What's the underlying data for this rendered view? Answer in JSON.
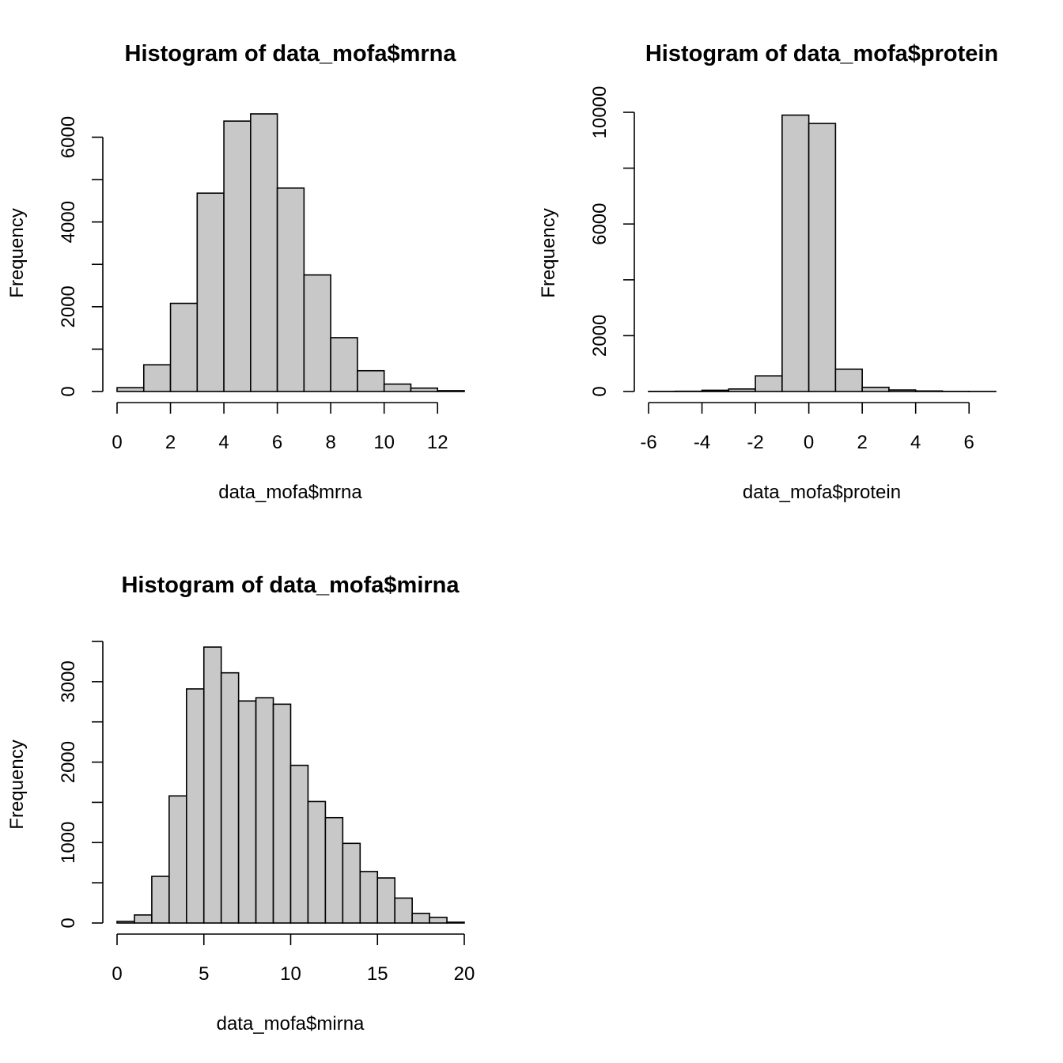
{
  "chart_data": [
    {
      "type": "bar",
      "chart_kind": "histogram",
      "title": "Histogram of data_mofa$mrna",
      "xlabel": "data_mofa$mrna",
      "ylabel": "Frequency",
      "bin_edges": [
        0,
        1,
        2,
        3,
        4,
        5,
        6,
        7,
        8,
        9,
        10,
        11,
        12,
        13
      ],
      "values": [
        90,
        630,
        2080,
        4680,
        6380,
        6550,
        4800,
        2750,
        1270,
        490,
        175,
        80,
        20
      ],
      "bar_color": "#c8c8c8",
      "xlim": [
        0,
        13
      ],
      "ylim": [
        0,
        6550
      ],
      "xticks": [
        0,
        2,
        4,
        6,
        8,
        10,
        12
      ],
      "yticks": [
        0,
        1000,
        2000,
        3000,
        4000,
        5000,
        6000
      ],
      "ytick_labels": [
        "0",
        "",
        "2000",
        "",
        "4000",
        "",
        "6000"
      ],
      "grid": false
    },
    {
      "type": "bar",
      "chart_kind": "histogram",
      "title": "Histogram of data_mofa$protein",
      "xlabel": "data_mofa$protein",
      "ylabel": "Frequency",
      "bin_edges": [
        -6,
        -5,
        -4,
        -3,
        -2,
        -1,
        0,
        1,
        2,
        3,
        4,
        5,
        6,
        7
      ],
      "values": [
        5,
        10,
        45,
        90,
        560,
        9900,
        9600,
        800,
        150,
        55,
        20,
        5,
        3
      ],
      "bar_color": "#c8c8c8",
      "xlim": [
        -6,
        7
      ],
      "ylim": [
        0,
        10000
      ],
      "xticks": [
        -6,
        -4,
        -2,
        0,
        2,
        4,
        6
      ],
      "yticks": [
        0,
        2000,
        4000,
        6000,
        8000,
        10000
      ],
      "ytick_labels": [
        "0",
        "2000",
        "",
        "6000",
        "",
        "10000"
      ],
      "grid": false
    },
    {
      "type": "bar",
      "chart_kind": "histogram",
      "title": "Histogram of data_mofa$mirna",
      "xlabel": "data_mofa$mirna",
      "ylabel": "Frequency",
      "bin_edges": [
        0,
        1,
        2,
        3,
        4,
        5,
        6,
        7,
        8,
        9,
        10,
        11,
        12,
        13,
        14,
        15,
        16,
        17,
        18,
        19,
        20
      ],
      "values": [
        20,
        100,
        580,
        1580,
        2910,
        3430,
        3110,
        2760,
        2800,
        2720,
        1960,
        1510,
        1310,
        990,
        640,
        560,
        310,
        120,
        70,
        10
      ],
      "bar_color": "#c8c8c8",
      "xlim": [
        0,
        20
      ],
      "ylim": [
        0,
        3500
      ],
      "xticks": [
        0,
        5,
        10,
        15,
        20
      ],
      "yticks": [
        0,
        500,
        1000,
        1500,
        2000,
        2500,
        3000,
        3500
      ],
      "ytick_labels": [
        "0",
        "",
        "1000",
        "",
        "2000",
        "",
        "3000",
        ""
      ],
      "grid": false
    }
  ]
}
